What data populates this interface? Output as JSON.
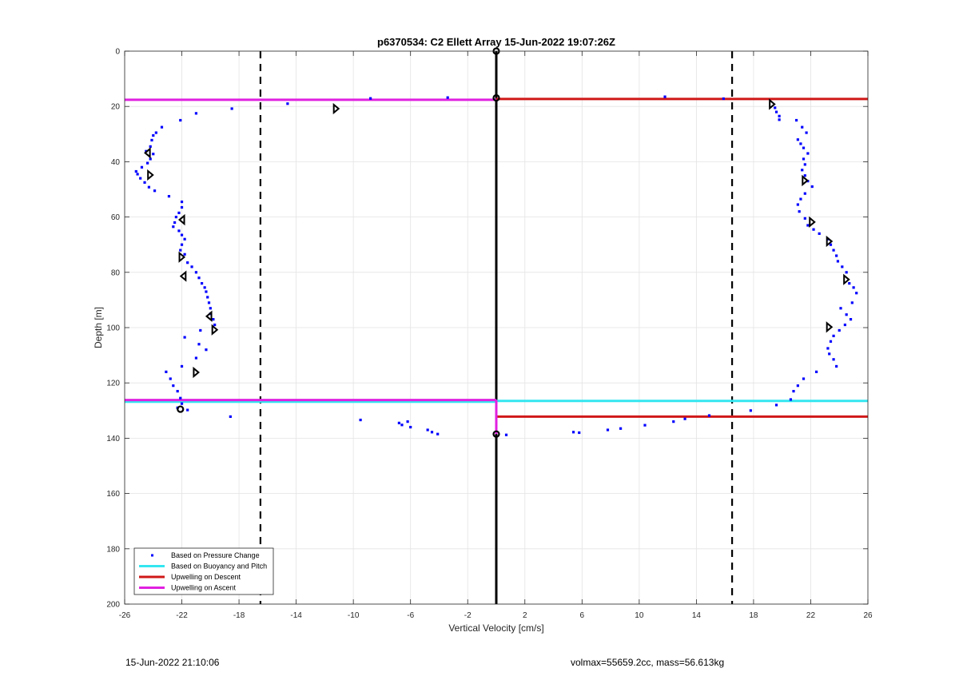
{
  "footer": {
    "left": "15-Jun-2022 21:10:06",
    "right": "volmax=55659.2cc, mass=56.613kg"
  },
  "chart_data": {
    "type": "scatter",
    "title": "p6370534: C2 Ellett Array 15-Jun-2022 19:07:26Z",
    "xlabel": "Vertical Velocity [cm/s]",
    "ylabel": "Depth [m]",
    "xlim": [
      -26,
      26
    ],
    "ylim": [
      0,
      200
    ],
    "y_reversed": true,
    "xticks": [
      -26,
      -22,
      -18,
      -14,
      -10,
      -6,
      -2,
      2,
      6,
      10,
      14,
      18,
      22,
      26
    ],
    "yticks": [
      0,
      20,
      40,
      60,
      80,
      100,
      120,
      140,
      160,
      180,
      200
    ],
    "grid": true,
    "legend_position": "bottom-left",
    "colors": {
      "pressure_points": "#0000ff",
      "buoyancy_pitch": "#33e6f0",
      "upwelling_descent": "#d01818",
      "upwelling_ascent": "#e020e0",
      "reference_lines": "#000000"
    },
    "series": [
      {
        "name": "Based on Pressure Change",
        "style": "points",
        "points": [
          [
            11.8,
            16.5
          ],
          [
            15.9,
            17.2
          ],
          [
            -3.4,
            16.8
          ],
          [
            -8.8,
            17.1
          ],
          [
            -14.6,
            19
          ],
          [
            -18.5,
            20.8
          ],
          [
            -21,
            22.5
          ],
          [
            -22.1,
            25
          ],
          [
            -23.4,
            27.5
          ],
          [
            -23.8,
            29.5
          ],
          [
            -24,
            30.5
          ],
          [
            -24.1,
            32.2
          ],
          [
            -24.2,
            34.5
          ],
          [
            -24.5,
            36.2
          ],
          [
            -24,
            37.2
          ],
          [
            -24.2,
            39
          ],
          [
            -24.4,
            40.5
          ],
          [
            -24.8,
            42
          ],
          [
            -25.2,
            43.5
          ],
          [
            -25.1,
            44.5
          ],
          [
            -24.9,
            46
          ],
          [
            -24.6,
            47.5
          ],
          [
            -24.3,
            49.2
          ],
          [
            -23.9,
            50.5
          ],
          [
            -22.9,
            52.5
          ],
          [
            -22,
            54.5
          ],
          [
            -22,
            56.5
          ],
          [
            -22.2,
            58.5
          ],
          [
            -22.4,
            60
          ],
          [
            -22.5,
            62
          ],
          [
            -22.6,
            63.5
          ],
          [
            -22.2,
            65
          ],
          [
            -22,
            66.5
          ],
          [
            -21.8,
            68
          ],
          [
            -22,
            70
          ],
          [
            -22.1,
            72
          ],
          [
            -21.8,
            73.5
          ],
          [
            -21.6,
            76.5
          ],
          [
            -21.3,
            78
          ],
          [
            -21,
            80
          ],
          [
            -20.8,
            82
          ],
          [
            -20.6,
            84
          ],
          [
            -20.4,
            85.5
          ],
          [
            -20.3,
            87
          ],
          [
            -20.2,
            89
          ],
          [
            -20.1,
            91
          ],
          [
            -20,
            93
          ],
          [
            -20,
            95
          ],
          [
            -19.8,
            97
          ],
          [
            -19.7,
            99
          ],
          [
            -20.7,
            101
          ],
          [
            -21.8,
            103.5
          ],
          [
            -20.8,
            106
          ],
          [
            -20.3,
            108
          ],
          [
            -21,
            111
          ],
          [
            -22,
            114
          ],
          [
            -23.1,
            116
          ],
          [
            -22.8,
            118.5
          ],
          [
            -22.6,
            121
          ],
          [
            -22.3,
            123
          ],
          [
            -22.1,
            125.5
          ],
          [
            -22,
            127.5
          ],
          [
            -22.3,
            129
          ],
          [
            -21.6,
            129.8
          ],
          [
            -18.6,
            132.2
          ],
          [
            -9.5,
            133.4
          ],
          [
            -6.8,
            134.5
          ],
          [
            -6.6,
            135.2
          ],
          [
            -6.2,
            134
          ],
          [
            -6,
            136
          ],
          [
            -4.8,
            137
          ],
          [
            -4.5,
            137.8
          ],
          [
            -4.1,
            138.5
          ],
          [
            0.7,
            138.8
          ],
          [
            5.4,
            137.8
          ],
          [
            5.8,
            138
          ],
          [
            7.8,
            137
          ],
          [
            8.7,
            136.5
          ],
          [
            10.4,
            135.3
          ],
          [
            12.4,
            134
          ],
          [
            13.2,
            133
          ],
          [
            14.9,
            131.8
          ],
          [
            17.8,
            130
          ],
          [
            19.6,
            128
          ],
          [
            20.6,
            126
          ],
          [
            20.8,
            123
          ],
          [
            21.1,
            121
          ],
          [
            21.5,
            118.5
          ],
          [
            22.4,
            116
          ],
          [
            23.8,
            114
          ],
          [
            23.6,
            111.5
          ],
          [
            23.3,
            109.5
          ],
          [
            23.2,
            107.5
          ],
          [
            23.4,
            105
          ],
          [
            23.6,
            103
          ],
          [
            24,
            101
          ],
          [
            24.4,
            99
          ],
          [
            24.8,
            97
          ],
          [
            24.5,
            95.3
          ],
          [
            24.1,
            93
          ],
          [
            24.9,
            91
          ],
          [
            25.2,
            87.5
          ],
          [
            25,
            85.5
          ],
          [
            24.7,
            84
          ],
          [
            24.5,
            80
          ],
          [
            24.2,
            78
          ],
          [
            23.9,
            76
          ],
          [
            23.8,
            74
          ],
          [
            23.6,
            72
          ],
          [
            23.4,
            70
          ],
          [
            23.2,
            68
          ],
          [
            22.6,
            66
          ],
          [
            22.2,
            64.5
          ],
          [
            21.8,
            63
          ],
          [
            21.6,
            60.5
          ],
          [
            21.2,
            58
          ],
          [
            21.1,
            55.5
          ],
          [
            21.3,
            53.5
          ],
          [
            21.6,
            51.5
          ],
          [
            22.1,
            49
          ],
          [
            21.8,
            47
          ],
          [
            21.6,
            45
          ],
          [
            21.4,
            43
          ],
          [
            21.6,
            41
          ],
          [
            21.5,
            39
          ],
          [
            21.8,
            37
          ],
          [
            21.5,
            35
          ],
          [
            21.3,
            33.5
          ],
          [
            21.1,
            32
          ],
          [
            21.7,
            29.5
          ],
          [
            21.4,
            27.5
          ],
          [
            21,
            25
          ],
          [
            19.8,
            23.5
          ],
          [
            19.8,
            24.8
          ],
          [
            19.6,
            22
          ],
          [
            19.5,
            20.5
          ]
        ]
      },
      {
        "name": "Based on Buoyancy and Pitch",
        "style": "step",
        "segments": [
          {
            "x_from": -26,
            "x_to": 0,
            "y": 126.8
          },
          {
            "x_from": 0,
            "x_to": 26,
            "y": 126.5
          }
        ]
      },
      {
        "name": "Upwelling on Descent",
        "style": "step",
        "segments": [
          {
            "x_from": 0,
            "x_to": 26,
            "y": 17.3
          },
          {
            "x_from": 0,
            "x_to": 26,
            "y": 132.2
          }
        ]
      },
      {
        "name": "Upwelling on Ascent",
        "style": "step",
        "segments": [
          {
            "x_from": -26,
            "x_to": 0,
            "y": 17.6
          },
          {
            "x_from": -26,
            "x_to": 0,
            "y": 126.2
          }
        ],
        "vertical_at_x": 0,
        "vertical_y_range": [
          126.2,
          138.5
        ]
      }
    ],
    "markers": {
      "style": "open-triangle",
      "right": [
        [
          -11.2,
          20.8
        ],
        [
          19.3,
          19.2
        ],
        [
          21.6,
          46.8
        ],
        [
          22.1,
          61.8
        ],
        [
          23.3,
          68.8
        ],
        [
          24.5,
          82.6
        ],
        [
          23.3,
          99.8
        ],
        [
          -24.2,
          44.8
        ],
        [
          -22,
          74.5
        ],
        [
          -19.7,
          100.8
        ],
        [
          -21,
          116.2
        ]
      ],
      "left": [
        [
          -24.4,
          36.8
        ],
        [
          -22,
          61
        ],
        [
          -21.9,
          81.4
        ],
        [
          -20.1,
          95.9
        ]
      ],
      "dots": [
        [
          -22.1,
          129.5
        ],
        [
          0,
          138.5
        ],
        [
          0,
          16.9
        ],
        [
          0,
          0
        ]
      ]
    },
    "vertical_reference_lines": [
      {
        "x": 0,
        "style": "solid"
      },
      {
        "x": -16.5,
        "style": "dashed"
      },
      {
        "x": 16.5,
        "style": "dashed"
      }
    ]
  }
}
